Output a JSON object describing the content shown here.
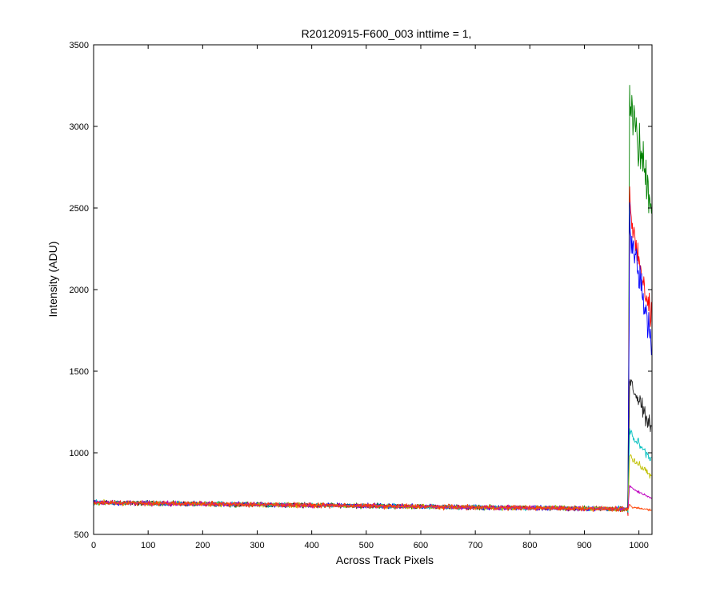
{
  "chart_data": {
    "type": "line",
    "title": "R20120915-F600_003 inttime = 1,",
    "xlabel": "Across Track Pixels",
    "ylabel": "Intensity (ADU)",
    "xlim": [
      0,
      1024
    ],
    "ylim": [
      500,
      3500
    ],
    "xticks": [
      0,
      100,
      200,
      300,
      400,
      500,
      600,
      700,
      800,
      900,
      1000
    ],
    "yticks": [
      500,
      1000,
      1500,
      2000,
      2500,
      3000,
      3500
    ],
    "xtick_labels": [
      "0",
      "100",
      "200",
      "300",
      "400",
      "500",
      "600",
      "700",
      "800",
      "900",
      "1000"
    ],
    "ytick_labels": [
      "500",
      "1000",
      "1500",
      "2000",
      "2500",
      "3000",
      "3500"
    ],
    "grid": false,
    "legend": "none",
    "baseline": {
      "start": 695,
      "end": 655,
      "noise": 14
    },
    "edge_pixel": 980,
    "series": [
      {
        "color": "#008000",
        "peak": 3200,
        "plateau": 3050,
        "end": 2550,
        "level_at_1000": 2600
      },
      {
        "color": "#ff0000",
        "peak": 2500,
        "plateau": 2400,
        "end": 1800,
        "level_at_1000": 2100
      },
      {
        "color": "#0000ff",
        "peak": 2430,
        "plateau": 2300,
        "end": 1700,
        "level_at_1000": 1950
      },
      {
        "color": "#222222",
        "peak": 1470,
        "plateau": 1400,
        "end": 1150,
        "level_at_1000": 1280
      },
      {
        "color": "#00bfbf",
        "peak": 1150,
        "plateau": 1100,
        "end": 960,
        "level_at_1000": 1010
      },
      {
        "color": "#bfbf00",
        "peak": 1000,
        "plateau": 960,
        "end": 860,
        "level_at_1000": 900
      },
      {
        "color": "#bf00bf",
        "peak": 800,
        "plateau": 780,
        "end": 720,
        "level_at_1000": 750
      },
      {
        "color": "#ff4000",
        "peak": 680,
        "plateau": 665,
        "end": 650,
        "level_at_1000": 660
      }
    ]
  }
}
